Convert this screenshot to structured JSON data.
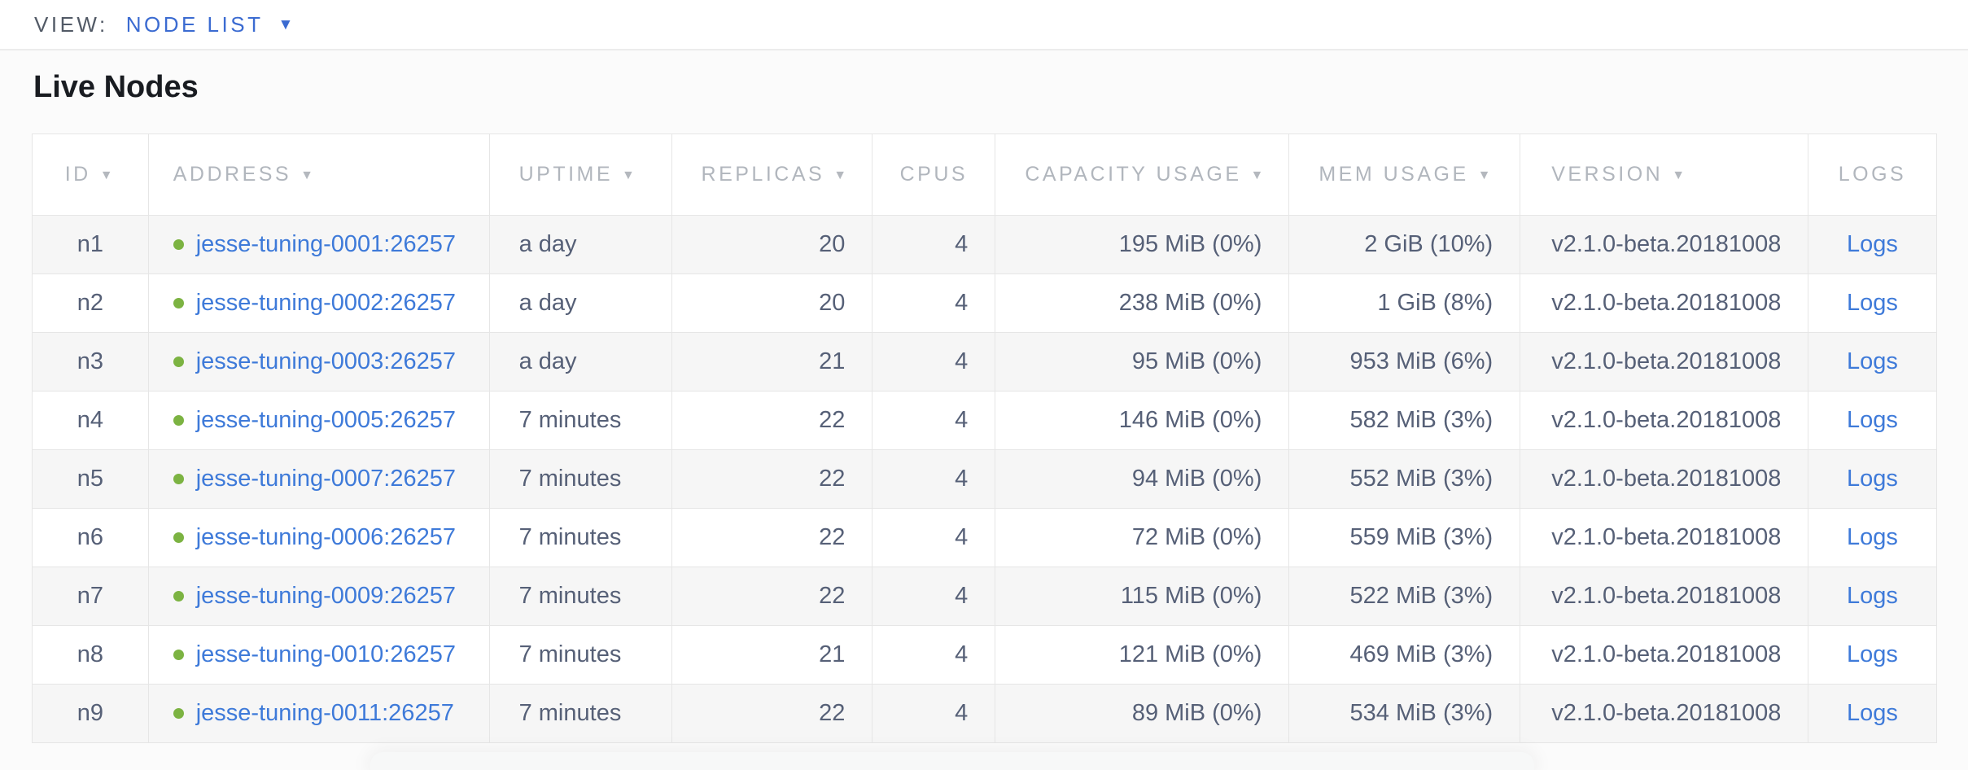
{
  "view_bar": {
    "label": "VIEW:",
    "selected": "NODE LIST"
  },
  "page": {
    "title": "Live Nodes"
  },
  "table": {
    "sort_indicator": "▼",
    "columns": [
      {
        "key": "id",
        "label": "ID",
        "sortable": true
      },
      {
        "key": "address",
        "label": "ADDRESS",
        "sortable": true
      },
      {
        "key": "uptime",
        "label": "UPTIME",
        "sortable": true
      },
      {
        "key": "replicas",
        "label": "REPLICAS",
        "sortable": true
      },
      {
        "key": "cpus",
        "label": "CPUS",
        "sortable": false
      },
      {
        "key": "capacity_usage",
        "label": "CAPACITY USAGE",
        "sortable": true
      },
      {
        "key": "mem_usage",
        "label": "MEM USAGE",
        "sortable": true
      },
      {
        "key": "version",
        "label": "VERSION",
        "sortable": true
      },
      {
        "key": "logs",
        "label": "LOGS",
        "sortable": false
      }
    ],
    "rows": [
      {
        "id": "n1",
        "address": "jesse-tuning-0001:26257",
        "uptime": "a day",
        "replicas": "20",
        "cpus": "4",
        "capacity_usage": "195 MiB (0%)",
        "mem_usage": "2 GiB (10%)",
        "version": "v2.1.0-beta.20181008",
        "logs": "Logs"
      },
      {
        "id": "n2",
        "address": "jesse-tuning-0002:26257",
        "uptime": "a day",
        "replicas": "20",
        "cpus": "4",
        "capacity_usage": "238 MiB (0%)",
        "mem_usage": "1 GiB (8%)",
        "version": "v2.1.0-beta.20181008",
        "logs": "Logs"
      },
      {
        "id": "n3",
        "address": "jesse-tuning-0003:26257",
        "uptime": "a day",
        "replicas": "21",
        "cpus": "4",
        "capacity_usage": "95 MiB (0%)",
        "mem_usage": "953 MiB (6%)",
        "version": "v2.1.0-beta.20181008",
        "logs": "Logs"
      },
      {
        "id": "n4",
        "address": "jesse-tuning-0005:26257",
        "uptime": "7 minutes",
        "replicas": "22",
        "cpus": "4",
        "capacity_usage": "146 MiB (0%)",
        "mem_usage": "582 MiB (3%)",
        "version": "v2.1.0-beta.20181008",
        "logs": "Logs"
      },
      {
        "id": "n5",
        "address": "jesse-tuning-0007:26257",
        "uptime": "7 minutes",
        "replicas": "22",
        "cpus": "4",
        "capacity_usage": "94 MiB (0%)",
        "mem_usage": "552 MiB (3%)",
        "version": "v2.1.0-beta.20181008",
        "logs": "Logs"
      },
      {
        "id": "n6",
        "address": "jesse-tuning-0006:26257",
        "uptime": "7 minutes",
        "replicas": "22",
        "cpus": "4",
        "capacity_usage": "72 MiB (0%)",
        "mem_usage": "559 MiB (3%)",
        "version": "v2.1.0-beta.20181008",
        "logs": "Logs"
      },
      {
        "id": "n7",
        "address": "jesse-tuning-0009:26257",
        "uptime": "7 minutes",
        "replicas": "22",
        "cpus": "4",
        "capacity_usage": "115 MiB (0%)",
        "mem_usage": "522 MiB (3%)",
        "version": "v2.1.0-beta.20181008",
        "logs": "Logs"
      },
      {
        "id": "n8",
        "address": "jesse-tuning-0010:26257",
        "uptime": "7 minutes",
        "replicas": "21",
        "cpus": "4",
        "capacity_usage": "121 MiB (0%)",
        "mem_usage": "469 MiB (3%)",
        "version": "v2.1.0-beta.20181008",
        "logs": "Logs"
      },
      {
        "id": "n9",
        "address": "jesse-tuning-0011:26257",
        "uptime": "7 minutes",
        "replicas": "22",
        "cpus": "4",
        "capacity_usage": "89 MiB (0%)",
        "mem_usage": "534 MiB (3%)",
        "version": "v2.1.0-beta.20181008",
        "logs": "Logs"
      }
    ]
  },
  "colors": {
    "link_blue": "#3e7ad9",
    "view_selected_blue": "#3b6bd1",
    "status_dot_green": "#7cb342",
    "body_text_slate": "#566077",
    "header_text_gray": "#b1b6bd"
  }
}
